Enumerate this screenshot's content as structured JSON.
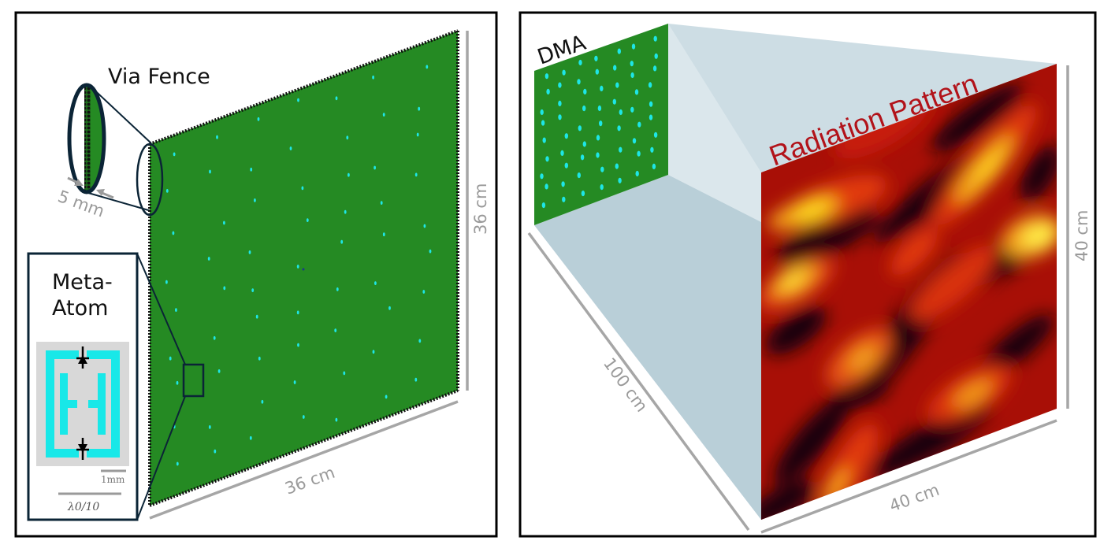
{
  "left_panel": {
    "via_fence_label": "Via Fence",
    "via_spacing_label": "5 mm",
    "meta_atom_label_line1": "Meta-",
    "meta_atom_label_line2": "Atom",
    "scale_1mm_label": "1mm",
    "scale_lambda_label": "λ0/10",
    "width_label": "36 cm",
    "height_label": "36 cm"
  },
  "right_panel": {
    "dma_label": "DMA",
    "pattern_label": "Radiation Pattern",
    "distance_label": "100 cm",
    "pattern_width_label": "40 cm",
    "pattern_height_label": "40 cm"
  },
  "colors": {
    "board": "#258a23",
    "element": "#1ee6e6",
    "frame": "#0b2436",
    "frustum": "#c8dbe2",
    "dimension": "#9a9a9a",
    "pattern_label": "#b2131a"
  }
}
